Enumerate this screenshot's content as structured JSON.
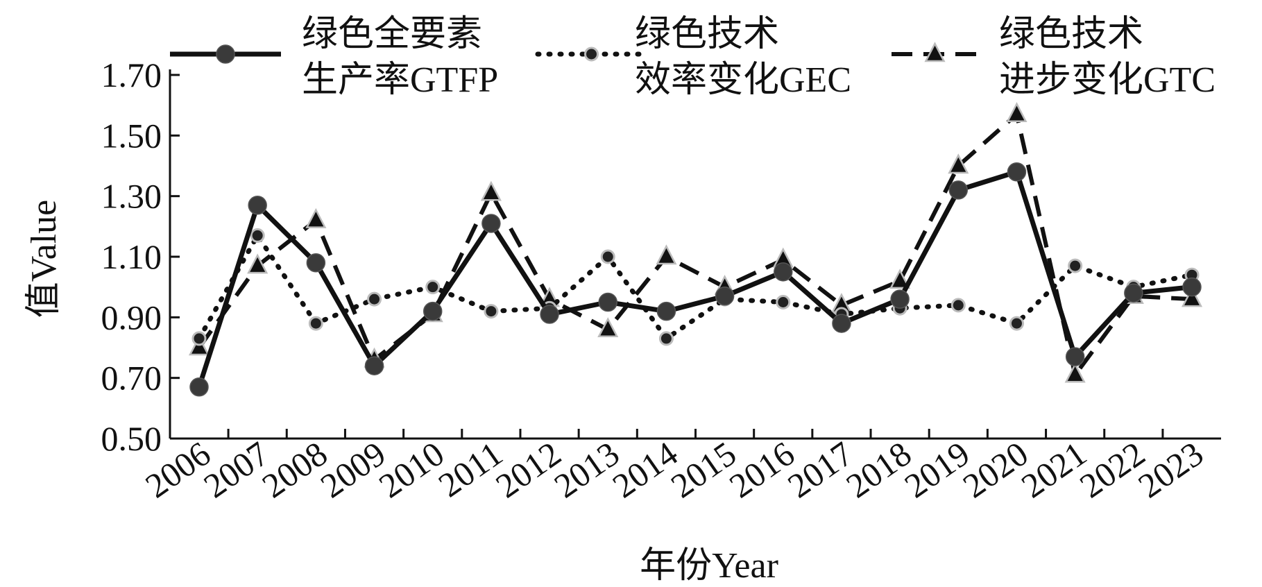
{
  "chart_data": {
    "type": "line",
    "x": [
      "2006",
      "2007",
      "2008",
      "2009",
      "2010",
      "2011",
      "2012",
      "2013",
      "2014",
      "2015",
      "2016",
      "2017",
      "2018",
      "2019",
      "2020",
      "2021",
      "2022",
      "2023"
    ],
    "series": [
      {
        "name_line1": "绿色全要素",
        "name_line2": "生产率GTFP",
        "style": "solid-circle",
        "values": [
          0.67,
          1.27,
          1.08,
          0.74,
          0.92,
          1.21,
          0.91,
          0.95,
          0.92,
          0.97,
          1.05,
          0.88,
          0.96,
          1.32,
          1.38,
          0.77,
          0.98,
          1.0
        ]
      },
      {
        "name_line1": "绿色技术",
        "name_line2": "效率变化GEC",
        "style": "dotted-diamond",
        "values": [
          0.83,
          1.17,
          0.88,
          0.96,
          1.0,
          0.92,
          0.93,
          1.1,
          0.83,
          0.96,
          0.95,
          0.91,
          0.93,
          0.94,
          0.88,
          1.07,
          1.0,
          1.04
        ]
      },
      {
        "name_line1": "绿色技术",
        "name_line2": "进步变化GTC",
        "style": "dashed-triangle",
        "values": [
          0.8,
          1.07,
          1.22,
          0.76,
          0.91,
          1.31,
          0.96,
          0.86,
          1.1,
          1.0,
          1.09,
          0.94,
          1.02,
          1.4,
          1.57,
          0.71,
          0.97,
          0.96
        ]
      }
    ],
    "yticks": [
      "0.50",
      "0.70",
      "0.90",
      "1.10",
      "1.30",
      "1.50",
      "1.70"
    ],
    "ylim": [
      0.5,
      1.7
    ],
    "xlabel": "年份Year",
    "ylabel": "值Value",
    "legend_position": "top",
    "grid": false
  }
}
